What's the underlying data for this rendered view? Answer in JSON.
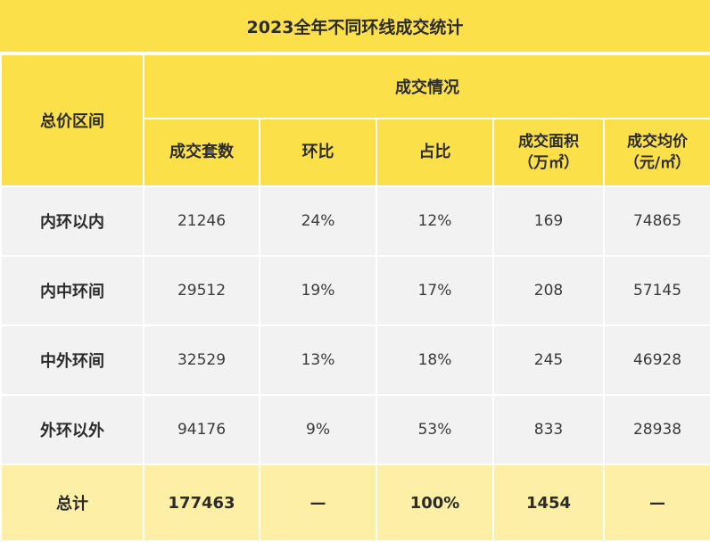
{
  "title": "2023全年不同环线成交统计",
  "header": {
    "price_range": "总价区间",
    "group": "成交情况",
    "columns": [
      {
        "line1": "成交套数",
        "line2": ""
      },
      {
        "line1": "环比",
        "line2": ""
      },
      {
        "line1": "占比",
        "line2": ""
      },
      {
        "line1": "成交面积",
        "line2": "（万㎡）"
      },
      {
        "line1": "成交均价",
        "line2": "（元/㎡）"
      }
    ]
  },
  "rows": [
    {
      "label": "内环以内",
      "cells": [
        "21246",
        "24%",
        "12%",
        "169",
        "74865"
      ]
    },
    {
      "label": "内中环间",
      "cells": [
        "29512",
        "19%",
        "17%",
        "208",
        "57145"
      ]
    },
    {
      "label": "中外环间",
      "cells": [
        "32529",
        "13%",
        "18%",
        "245",
        "46928"
      ]
    },
    {
      "label": "外环以外",
      "cells": [
        "94176",
        "9%",
        "53%",
        "833",
        "28938"
      ]
    }
  ],
  "total": {
    "label": "总计",
    "cells": [
      "177463",
      "—",
      "100%",
      "1454",
      "—"
    ]
  }
}
